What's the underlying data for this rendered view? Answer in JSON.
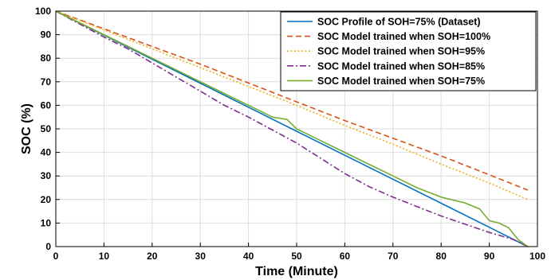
{
  "chart_data": {
    "type": "line",
    "xlabel": "Time (Minute)",
    "ylabel": "SOC (%)",
    "xlim": [
      0,
      100
    ],
    "ylim": [
      0,
      100
    ],
    "xticks": [
      0,
      10,
      20,
      30,
      40,
      50,
      60,
      70,
      80,
      90,
      100
    ],
    "yticks": [
      0,
      10,
      20,
      30,
      40,
      50,
      60,
      70,
      80,
      90,
      100
    ],
    "grid": true,
    "legend_position": "top-right",
    "series": [
      {
        "name": "SOC Profile of SOH=75% (Dataset)",
        "color": "#0072BD",
        "style": "solid",
        "x": [
          0,
          10,
          20,
          30,
          40,
          50,
          60,
          70,
          80,
          90,
          98
        ],
        "y": [
          100,
          89.8,
          79.6,
          69.4,
          59.2,
          49.0,
          38.8,
          28.6,
          18.4,
          8.2,
          0
        ]
      },
      {
        "name": "SOC Model trained when SOH=100%",
        "color": "#D95319",
        "style": "dashed",
        "x": [
          0,
          10,
          20,
          30,
          40,
          50,
          60,
          70,
          80,
          90,
          98
        ],
        "y": [
          100,
          92.5,
          85,
          77.5,
          69.5,
          61.5,
          53.5,
          46,
          38.5,
          30.5,
          24
        ]
      },
      {
        "name": "SOC Model trained when SOH=95%",
        "color": "#EDB120",
        "style": "dotted",
        "x": [
          0,
          10,
          20,
          30,
          40,
          50,
          60,
          70,
          80,
          90,
          98
        ],
        "y": [
          100,
          92,
          84,
          76,
          68,
          60,
          51.5,
          43.5,
          35,
          27,
          20
        ]
      },
      {
        "name": "SOC Model trained when SOH=85%",
        "color": "#7E2F8E",
        "style": "dashdot",
        "x": [
          0,
          10,
          15,
          20,
          25,
          30,
          35,
          40,
          45,
          50,
          55,
          60,
          65,
          70,
          75,
          80,
          85,
          90,
          95,
          98
        ],
        "y": [
          100,
          89,
          84,
          78,
          72,
          66,
          60,
          55,
          49.5,
          44,
          37.5,
          31,
          25.5,
          21,
          17,
          13,
          9.5,
          6,
          3,
          0
        ]
      },
      {
        "name": "SOC Model trained when SOH=75%",
        "color": "#77AC30",
        "style": "solid",
        "x": [
          0,
          10,
          15,
          20,
          25,
          30,
          35,
          40,
          45,
          48,
          50,
          55,
          60,
          65,
          70,
          75,
          80,
          85,
          88,
          90,
          92,
          94,
          96,
          98
        ],
        "y": [
          100,
          90,
          85,
          80,
          75,
          70,
          65,
          60,
          55,
          54,
          50,
          45,
          40,
          35,
          30,
          25,
          21,
          18.5,
          16,
          11,
          10,
          8,
          3,
          0
        ]
      }
    ]
  }
}
